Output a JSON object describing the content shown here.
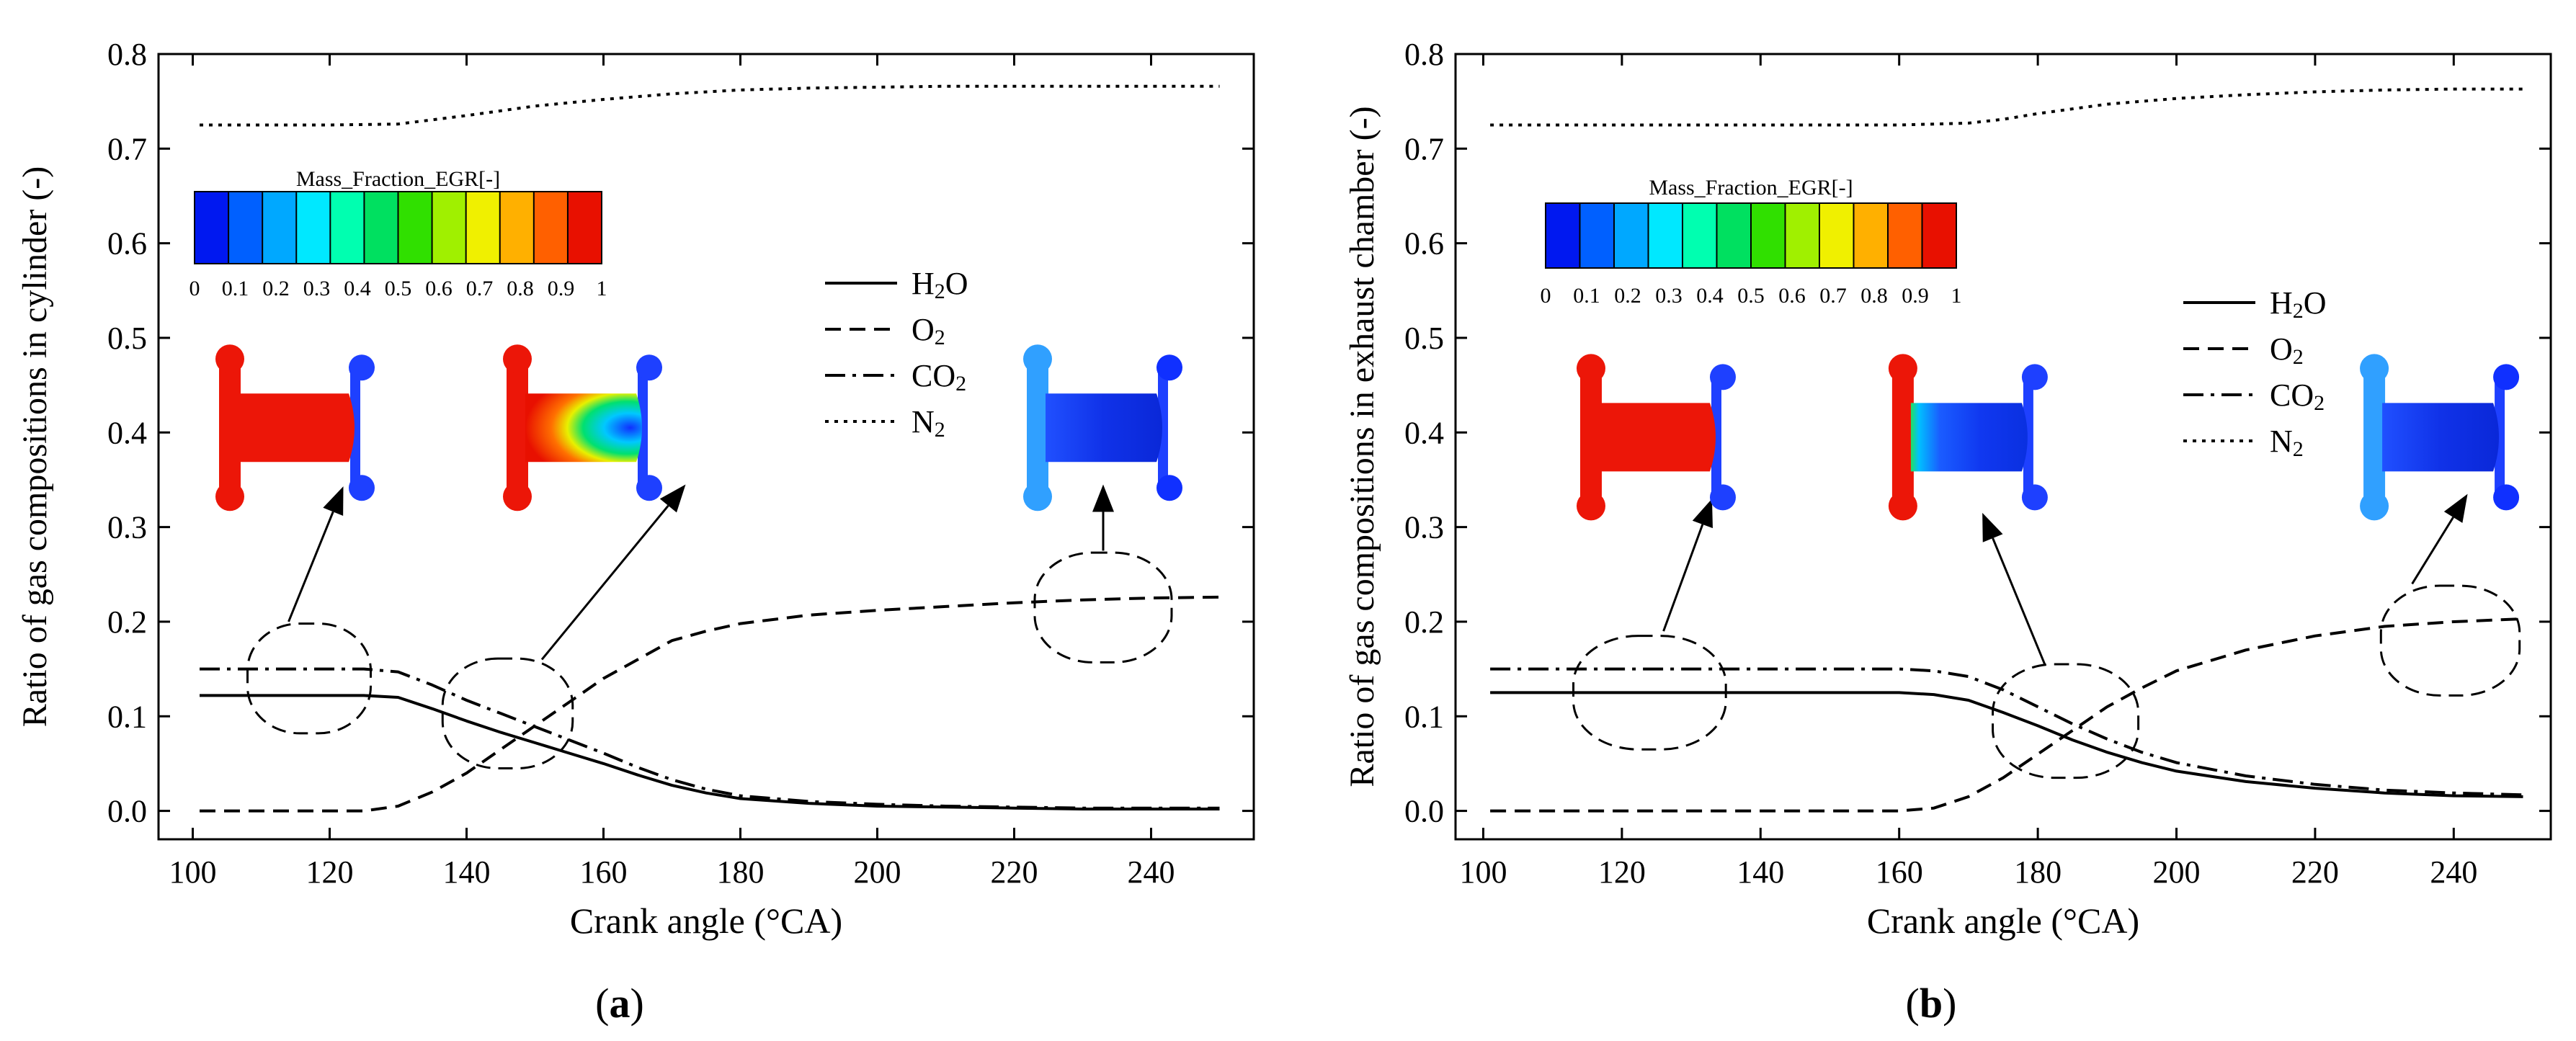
{
  "chart_data": [
    {
      "type": "line",
      "panel_label": "(a)",
      "xlabel": "Crank angle (°CA)",
      "ylabel": "Ratio of gas compositions in cylinder (-)",
      "xlim": [
        95,
        255
      ],
      "ylim": [
        -0.03,
        0.8
      ],
      "xticks": [
        100,
        120,
        140,
        160,
        180,
        200,
        220,
        240
      ],
      "yticks": [
        0.0,
        0.1,
        0.2,
        0.3,
        0.4,
        0.5,
        0.6,
        0.7,
        0.8
      ],
      "grid": false,
      "legend_position": "right-middle",
      "legend": [
        {
          "label": "H2O",
          "base": "H",
          "sub": "2",
          "tail": "O",
          "style": "solid"
        },
        {
          "label": "O2",
          "base": "O",
          "sub": "2",
          "tail": "",
          "style": "dashed"
        },
        {
          "label": "CO2",
          "base": "CO",
          "sub": "2",
          "tail": "",
          "style": "dashdot"
        },
        {
          "label": "N2",
          "base": "N",
          "sub": "2",
          "tail": "",
          "style": "dotted"
        }
      ],
      "colorbar": {
        "title": "Mass_Fraction_EGR[-]",
        "ticks": [
          "0",
          "0.1",
          "0.2",
          "0.3",
          "0.4",
          "0.5",
          "0.6",
          "0.7",
          "0.8",
          "0.9",
          "1"
        ],
        "colors": [
          "#0018f0",
          "#0060ff",
          "#00a8ff",
          "#00e8ff",
          "#00ffb0",
          "#00e060",
          "#30e000",
          "#a0f000",
          "#f0f000",
          "#ffb000",
          "#ff6000",
          "#e81000"
        ]
      },
      "series": [
        {
          "name": "H2O",
          "style": "solid",
          "x": [
            101,
            110,
            120,
            125,
            130,
            135,
            140,
            145,
            150,
            155,
            160,
            165,
            170,
            175,
            180,
            190,
            200,
            210,
            220,
            230,
            240,
            250
          ],
          "y": [
            0.122,
            0.122,
            0.122,
            0.122,
            0.12,
            0.108,
            0.095,
            0.083,
            0.072,
            0.061,
            0.05,
            0.038,
            0.027,
            0.019,
            0.013,
            0.008,
            0.005,
            0.004,
            0.003,
            0.002,
            0.002,
            0.002
          ]
        },
        {
          "name": "O2",
          "style": "dashed",
          "x": [
            101,
            110,
            120,
            125,
            130,
            135,
            140,
            145,
            150,
            155,
            160,
            165,
            170,
            175,
            180,
            190,
            200,
            210,
            220,
            230,
            240,
            250
          ],
          "y": [
            0.0,
            0.0,
            0.0,
            0.0,
            0.005,
            0.02,
            0.04,
            0.065,
            0.09,
            0.115,
            0.14,
            0.16,
            0.18,
            0.19,
            0.198,
            0.207,
            0.212,
            0.216,
            0.22,
            0.223,
            0.225,
            0.226
          ]
        },
        {
          "name": "CO2",
          "style": "dashdot",
          "x": [
            101,
            110,
            120,
            125,
            130,
            135,
            140,
            145,
            150,
            155,
            160,
            165,
            170,
            175,
            180,
            190,
            200,
            210,
            220,
            230,
            240,
            250
          ],
          "y": [
            0.15,
            0.15,
            0.15,
            0.15,
            0.147,
            0.133,
            0.117,
            0.103,
            0.089,
            0.075,
            0.061,
            0.046,
            0.033,
            0.023,
            0.016,
            0.01,
            0.007,
            0.005,
            0.004,
            0.003,
            0.003,
            0.003
          ]
        },
        {
          "name": "N2",
          "style": "dotted",
          "x": [
            101,
            110,
            120,
            130,
            140,
            150,
            160,
            170,
            180,
            190,
            200,
            210,
            220,
            230,
            240,
            250
          ],
          "y": [
            0.725,
            0.725,
            0.725,
            0.726,
            0.735,
            0.745,
            0.752,
            0.758,
            0.762,
            0.764,
            0.765,
            0.766,
            0.766,
            0.766,
            0.766,
            0.766
          ]
        }
      ],
      "annotations": [
        {
          "type": "ellipse",
          "cx": 117,
          "cy": 0.14,
          "rx": 9,
          "ry": 0.058
        },
        {
          "type": "ellipse",
          "cx": 146,
          "cy": 0.103,
          "rx": 9.5,
          "ry": 0.058
        },
        {
          "type": "ellipse",
          "cx": 233,
          "cy": 0.215,
          "rx": 10,
          "ry": 0.058
        }
      ],
      "snapshots": [
        {
          "x": 115,
          "y": 0.405,
          "fill": "uniform-red"
        },
        {
          "x": 157,
          "y": 0.405,
          "fill": "jet-plume"
        },
        {
          "x": 233,
          "y": 0.405,
          "fill": "uniform-blue"
        }
      ],
      "arrows": [
        {
          "from": [
            114,
            0.2
          ],
          "to": [
            122,
            0.343
          ]
        },
        {
          "from": [
            151,
            0.16
          ],
          "to": [
            172,
            0.345
          ]
        },
        {
          "from": [
            233,
            0.275
          ],
          "to": [
            233,
            0.345
          ]
        }
      ]
    },
    {
      "type": "line",
      "panel_label": "(b)",
      "xlabel": "Crank angle (°CA)",
      "ylabel": "Ratio of gas compositions in exhaust chamber (-)",
      "xlim": [
        96,
        254
      ],
      "ylim": [
        -0.03,
        0.8
      ],
      "xticks": [
        100,
        120,
        140,
        160,
        180,
        200,
        220,
        240
      ],
      "yticks": [
        0.0,
        0.1,
        0.2,
        0.3,
        0.4,
        0.5,
        0.6,
        0.7,
        0.8
      ],
      "grid": false,
      "legend_position": "right-middle",
      "legend": [
        {
          "label": "H2O",
          "base": "H",
          "sub": "2",
          "tail": "O",
          "style": "solid"
        },
        {
          "label": "O2",
          "base": "O",
          "sub": "2",
          "tail": "",
          "style": "dashed"
        },
        {
          "label": "CO2",
          "base": "CO",
          "sub": "2",
          "tail": "",
          "style": "dashdot"
        },
        {
          "label": "N2",
          "base": "N",
          "sub": "2",
          "tail": "",
          "style": "dotted"
        }
      ],
      "colorbar": {
        "title": "Mass_Fraction_EGR[-]",
        "ticks": [
          "0",
          "0.1",
          "0.2",
          "0.3",
          "0.4",
          "0.5",
          "0.6",
          "0.7",
          "0.8",
          "0.9",
          "1"
        ],
        "colors": [
          "#0018f0",
          "#0060ff",
          "#00a8ff",
          "#00e8ff",
          "#00ffb0",
          "#00e060",
          "#30e000",
          "#a0f000",
          "#f0f000",
          "#ffb000",
          "#ff6000",
          "#e81000"
        ]
      },
      "series": [
        {
          "name": "H2O",
          "style": "solid",
          "x": [
            101,
            120,
            140,
            160,
            165,
            170,
            175,
            180,
            185,
            190,
            195,
            200,
            210,
            220,
            230,
            240,
            250
          ],
          "y": [
            0.125,
            0.125,
            0.125,
            0.125,
            0.123,
            0.117,
            0.104,
            0.09,
            0.075,
            0.062,
            0.051,
            0.042,
            0.031,
            0.024,
            0.019,
            0.016,
            0.015
          ]
        },
        {
          "name": "O2",
          "style": "dashed",
          "x": [
            101,
            120,
            140,
            160,
            165,
            170,
            175,
            180,
            185,
            190,
            195,
            200,
            210,
            220,
            230,
            240,
            250
          ],
          "y": [
            0.0,
            0.0,
            0.0,
            0.0,
            0.003,
            0.015,
            0.035,
            0.06,
            0.085,
            0.11,
            0.13,
            0.148,
            0.17,
            0.185,
            0.195,
            0.2,
            0.203
          ]
        },
        {
          "name": "CO2",
          "style": "dashdot",
          "x": [
            101,
            120,
            140,
            160,
            165,
            170,
            175,
            180,
            185,
            190,
            195,
            200,
            210,
            220,
            230,
            240,
            250
          ],
          "y": [
            0.15,
            0.15,
            0.15,
            0.15,
            0.148,
            0.142,
            0.128,
            0.11,
            0.092,
            0.076,
            0.062,
            0.051,
            0.037,
            0.028,
            0.022,
            0.019,
            0.017
          ]
        },
        {
          "name": "N2",
          "style": "dotted",
          "x": [
            101,
            120,
            140,
            160,
            165,
            170,
            175,
            180,
            190,
            200,
            210,
            220,
            230,
            240,
            250
          ],
          "y": [
            0.725,
            0.725,
            0.725,
            0.725,
            0.726,
            0.727,
            0.731,
            0.737,
            0.747,
            0.753,
            0.757,
            0.76,
            0.762,
            0.763,
            0.763
          ]
        }
      ],
      "annotations": [
        {
          "type": "ellipse",
          "cx": 124,
          "cy": 0.125,
          "rx": 11,
          "ry": 0.06
        },
        {
          "type": "ellipse",
          "cx": 184,
          "cy": 0.095,
          "rx": 10.5,
          "ry": 0.06
        },
        {
          "type": "ellipse",
          "cx": 239.5,
          "cy": 0.18,
          "rx": 10,
          "ry": 0.058
        }
      ],
      "snapshots": [
        {
          "x": 125,
          "y": 0.395,
          "fill": "uniform-red"
        },
        {
          "x": 170,
          "y": 0.395,
          "fill": "jet-wall"
        },
        {
          "x": 238,
          "y": 0.395,
          "fill": "uniform-blue"
        }
      ],
      "arrows": [
        {
          "from": [
            126,
            0.19
          ],
          "to": [
            133,
            0.33
          ]
        },
        {
          "from": [
            181,
            0.155
          ],
          "to": [
            172,
            0.315
          ]
        },
        {
          "from": [
            234,
            0.24
          ],
          "to": [
            242,
            0.335
          ]
        }
      ]
    }
  ]
}
